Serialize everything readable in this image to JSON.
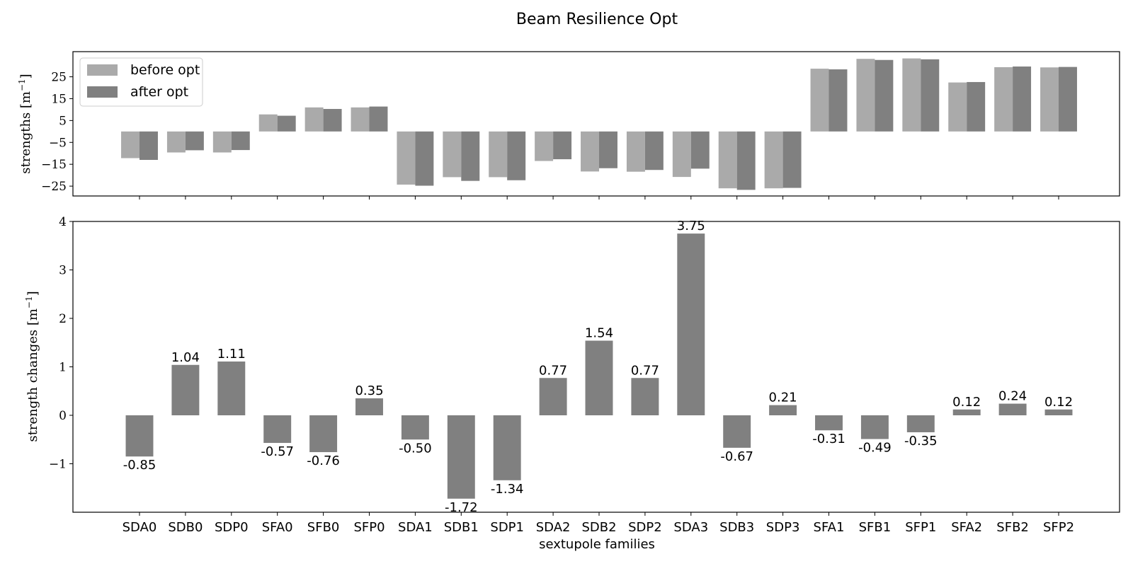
{
  "chart_data": {
    "title": "Beam Resilience Opt",
    "xlabel": "sextupole families",
    "categories": [
      "SDA0",
      "SDB0",
      "SDP0",
      "SFA0",
      "SFB0",
      "SFP0",
      "SDA1",
      "SDB1",
      "SDP1",
      "SDA2",
      "SDB2",
      "SDP2",
      "SDA3",
      "SDB3",
      "SDP3",
      "SFA1",
      "SFB1",
      "SFP1",
      "SFA2",
      "SFB2",
      "SFP2"
    ],
    "panels": [
      {
        "type": "bar",
        "ylabel": "strengths [m$^{-1}$]",
        "ylabel_text": "strengths [m",
        "ylabel_sup": "−1",
        "ylabel_end": "]",
        "ylim": [
          -29.5,
          36.5
        ],
        "yticks": [
          -25,
          -15,
          -5,
          5,
          15,
          25
        ],
        "ytick_labels": [
          "−25",
          "−15",
          "−5",
          "5",
          "15",
          "25"
        ],
        "legend_position": "upper-left",
        "series": [
          {
            "name": "before opt",
            "color": "#aaaaaa",
            "values": [
              -12.2,
              -9.6,
              -9.6,
              7.8,
              11.0,
              11.0,
              -24.3,
              -20.9,
              -20.9,
              -13.5,
              -18.3,
              -18.4,
              -20.8,
              -26.0,
              -26.0,
              28.7,
              33.2,
              33.4,
              22.4,
              29.4,
              29.3
            ]
          },
          {
            "name": "after opt",
            "color": "#808080",
            "values": [
              -13.0,
              -8.6,
              -8.5,
              7.2,
              10.3,
              11.4,
              -24.8,
              -22.6,
              -22.3,
              -12.7,
              -16.8,
              -17.6,
              -17.0,
              -26.7,
              -25.8,
              28.4,
              32.7,
              33.0,
              22.6,
              29.7,
              29.5
            ]
          }
        ]
      },
      {
        "type": "bar",
        "ylabel_text": "strength changes [m",
        "ylabel_sup": "−1",
        "ylabel_end": "]",
        "ylim": [
          -2.0,
          4.0
        ],
        "yticks": [
          -1,
          0,
          1,
          2,
          3,
          4
        ],
        "ytick_labels": [
          "−1",
          "0",
          "1",
          "2",
          "3",
          "4"
        ],
        "color": "#808080",
        "values": [
          -0.85,
          1.04,
          1.11,
          -0.57,
          -0.76,
          0.35,
          -0.5,
          -1.72,
          -1.34,
          0.77,
          1.54,
          0.77,
          3.75,
          -0.67,
          0.21,
          -0.31,
          -0.49,
          -0.35,
          0.12,
          0.24,
          0.12
        ],
        "data_labels": [
          "-0.85",
          "1.04",
          "1.11",
          "-0.57",
          "-0.76",
          "0.35",
          "-0.50",
          "-1.72",
          "-1.34",
          "0.77",
          "1.54",
          "0.77",
          "3.75",
          "-0.67",
          "0.21",
          "-0.31",
          "-0.49",
          "-0.35",
          "0.12",
          "0.24",
          "0.12"
        ]
      }
    ]
  }
}
